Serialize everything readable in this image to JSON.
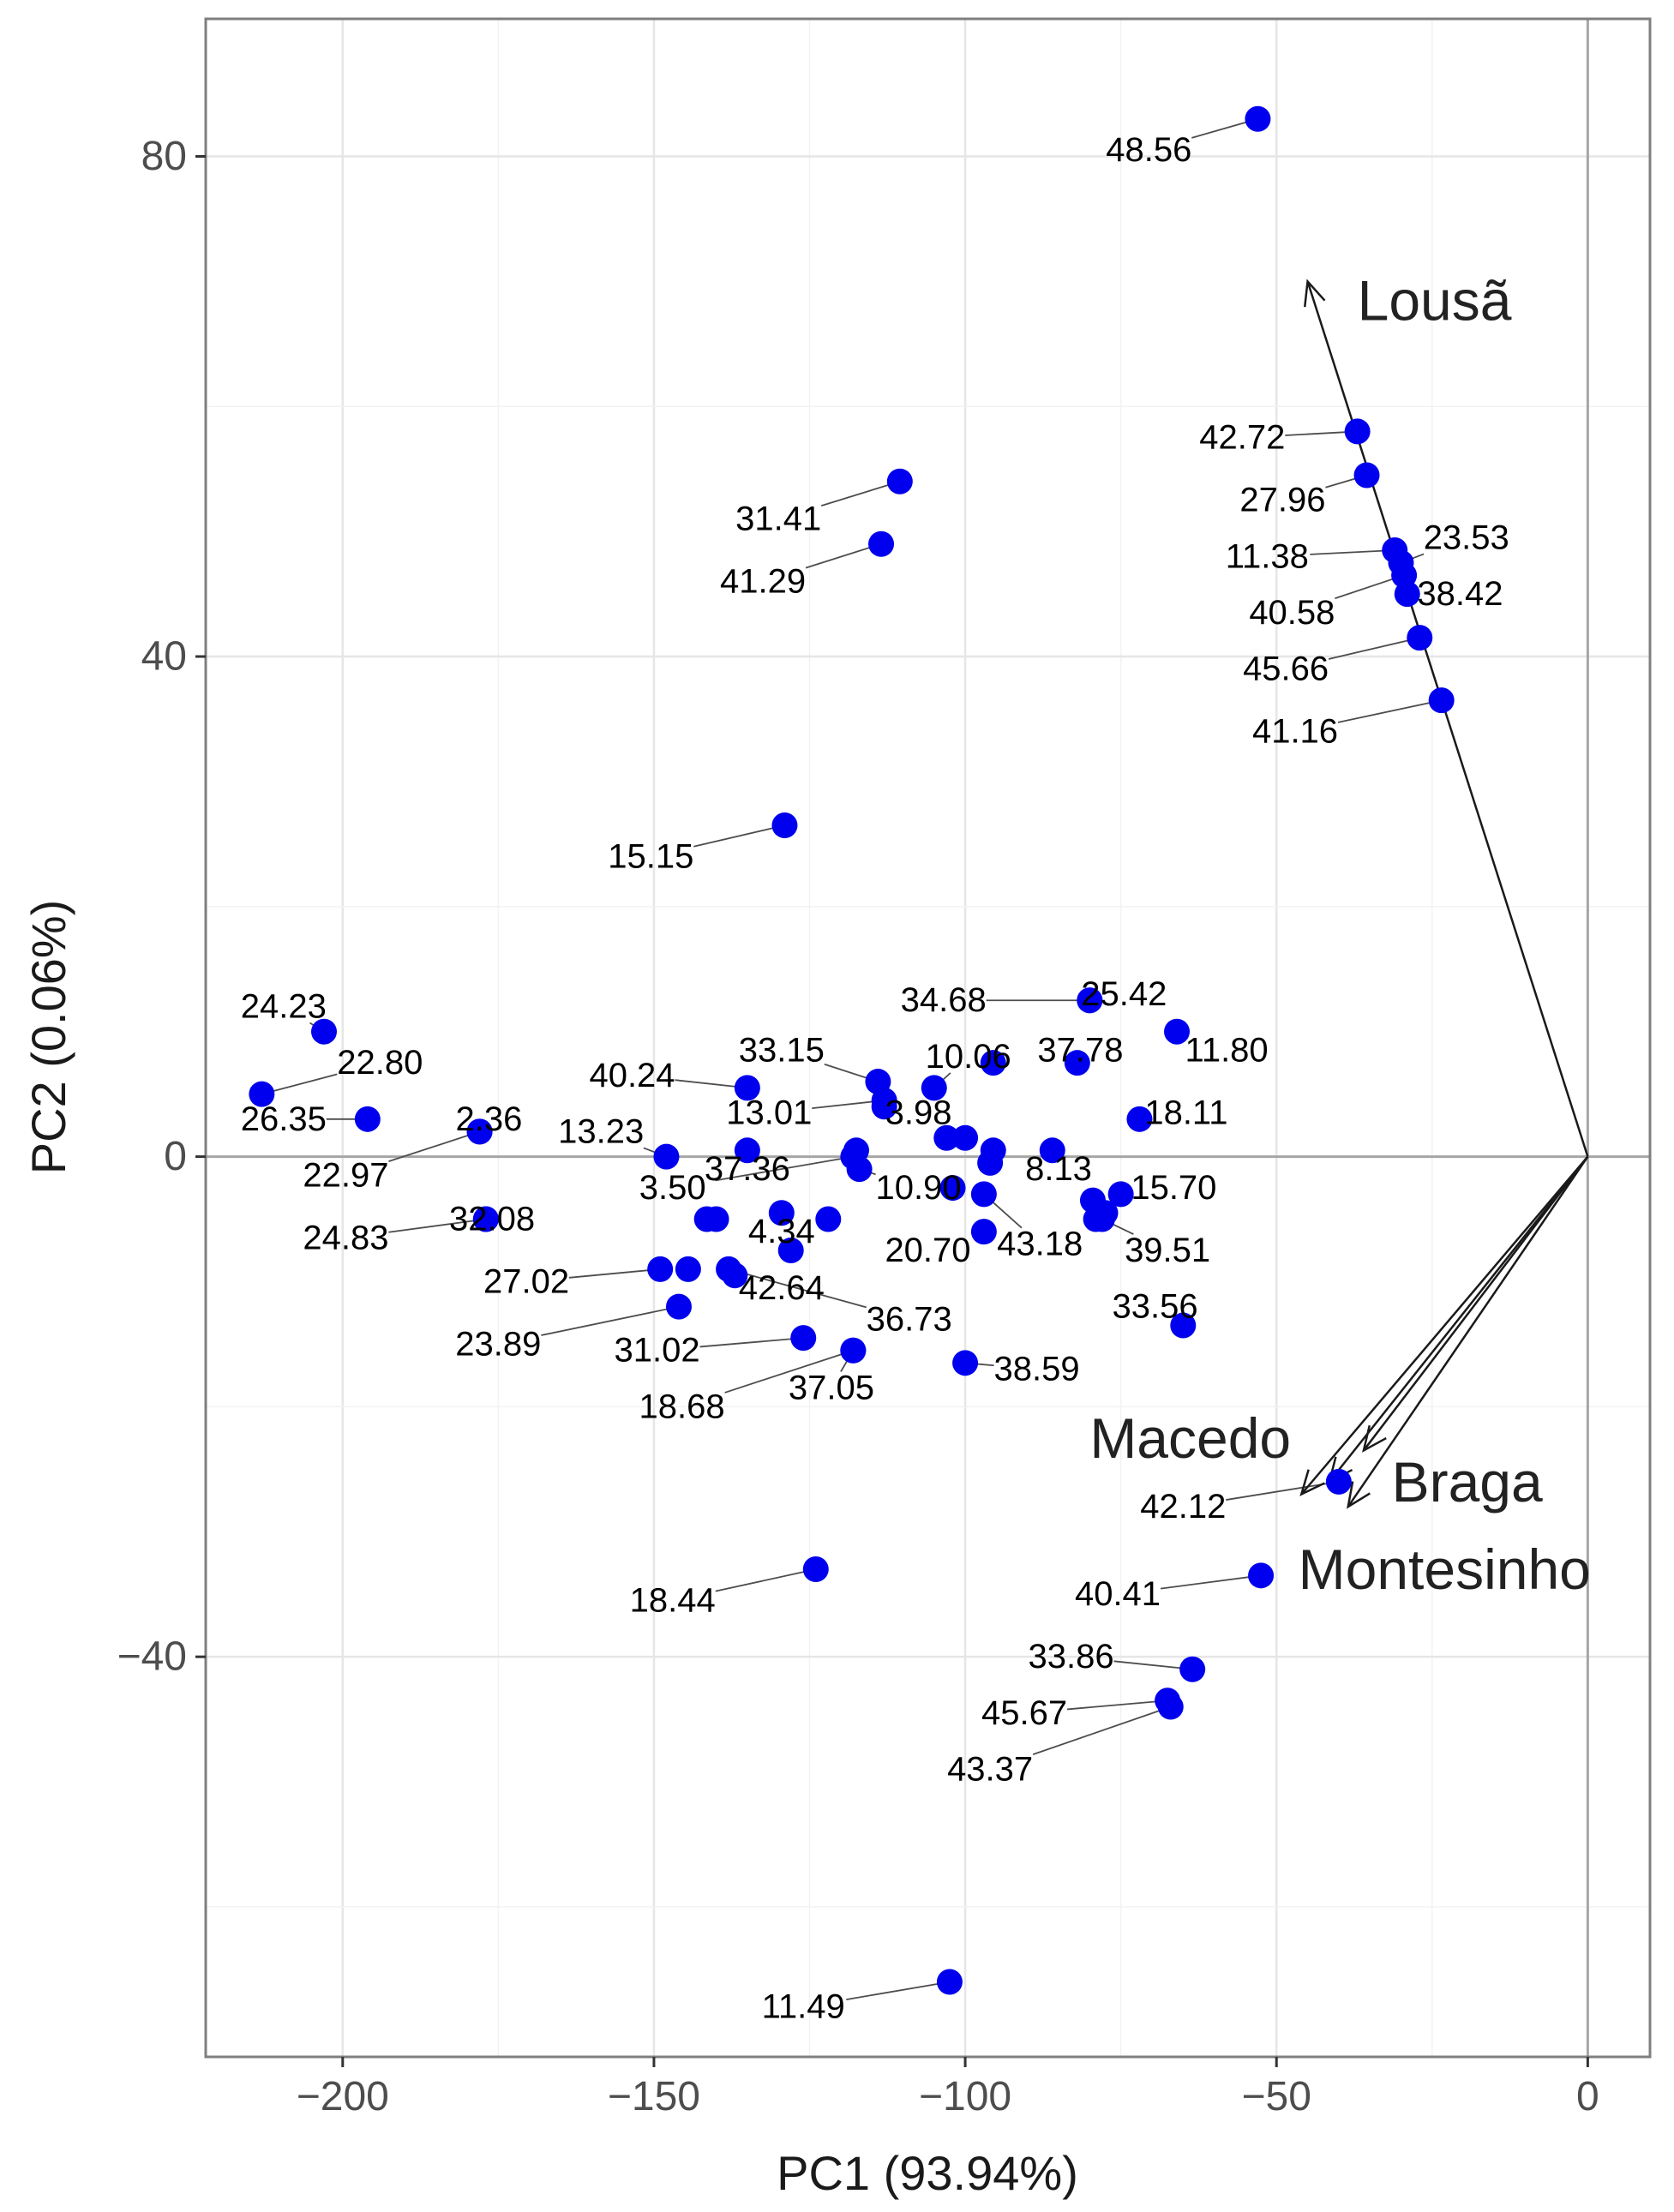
{
  "chart_data": {
    "type": "scatter",
    "subtype": "pca-biplot",
    "xlabel": "PC1 (93.94%)",
    "ylabel": "PC2 (0.06%)",
    "xlim": [
      -222,
      10
    ],
    "ylim": [
      -72,
      91
    ],
    "xticks": [
      -200,
      -150,
      -100,
      -50,
      0
    ],
    "xtick_labels": [
      "−200",
      "−150",
      "−100",
      "−50",
      "0"
    ],
    "yticks": [
      -40,
      0,
      40,
      80
    ],
    "ytick_labels": [
      "−40",
      "0",
      "40",
      "80"
    ],
    "grid": true,
    "point_color": "#0000ee",
    "points": [
      {
        "label": "48.56",
        "x": -53.0,
        "y": 83.0,
        "lx": -70.5,
        "ly": 80.5
      },
      {
        "label": "42.72",
        "x": -37.0,
        "y": 58.0,
        "lx": -55.5,
        "ly": 57.5
      },
      {
        "label": "27.96",
        "x": -35.5,
        "y": 54.5,
        "lx": -49.0,
        "ly": 52.5
      },
      {
        "label": "11.38",
        "x": -31.0,
        "y": 48.5,
        "lx": -51.5,
        "ly": 48.0
      },
      {
        "label": "23.53",
        "x": -30.0,
        "y": 47.5,
        "lx": -19.5,
        "ly": 49.5
      },
      {
        "label": "40.58",
        "x": -29.5,
        "y": 46.5,
        "lx": -47.5,
        "ly": 43.5
      },
      {
        "label": "38.42",
        "x": -29.0,
        "y": 45.0,
        "lx": -20.5,
        "ly": 45.0
      },
      {
        "label": "45.66",
        "x": -27.0,
        "y": 41.5,
        "lx": -48.5,
        "ly": 39.0
      },
      {
        "label": "41.16",
        "x": -23.5,
        "y": 36.5,
        "lx": -47.0,
        "ly": 34.0
      },
      {
        "label": "31.41",
        "x": -110.5,
        "y": 54.0,
        "lx": -130.0,
        "ly": 51.0
      },
      {
        "label": "41.29",
        "x": -113.5,
        "y": 49.0,
        "lx": -132.5,
        "ly": 46.0
      },
      {
        "label": "15.15",
        "x": -129.0,
        "y": 26.5,
        "lx": -150.5,
        "ly": 24.0
      },
      {
        "label": "24.23",
        "x": -203.0,
        "y": 10.0,
        "lx": -209.5,
        "ly": 12.0
      },
      {
        "label": "22.80",
        "x": -213.0,
        "y": 5.0,
        "lx": -194.0,
        "ly": 7.5
      },
      {
        "label": "26.35",
        "x": -196.0,
        "y": 3.0,
        "lx": -209.5,
        "ly": 3.0
      },
      {
        "label": "22.97",
        "x": -178.0,
        "y": 2.0,
        "lx": -199.5,
        "ly": -1.5
      },
      {
        "label": "2.36",
        "x": -178.0,
        "y": 2.0,
        "lx": -176.5,
        "ly": 3.0
      },
      {
        "label": "13.23",
        "x": -148.0,
        "y": 0.0,
        "lx": -158.5,
        "ly": 2.0
      },
      {
        "label": "40.24",
        "x": -135.0,
        "y": 5.5,
        "lx": -153.5,
        "ly": 6.5
      },
      {
        "label": "33.15",
        "x": -114.0,
        "y": 6.0,
        "lx": -129.5,
        "ly": 8.5
      },
      {
        "label": "10.06",
        "x": -105.0,
        "y": 5.5,
        "lx": -99.5,
        "ly": 8.0
      },
      {
        "label": "37.78",
        "x": -82.0,
        "y": 7.5,
        "lx": -81.5,
        "ly": 8.5
      },
      {
        "label": "25.42",
        "x": -80.0,
        "y": 12.5,
        "lx": -74.5,
        "ly": 13.0
      },
      {
        "label": "34.68",
        "x": -80.0,
        "y": 12.5,
        "lx": -103.5,
        "ly": 12.5
      },
      {
        "label": "11.80",
        "x": -66.0,
        "y": 10.0,
        "lx": -58.0,
        "ly": 8.5
      },
      {
        "label": "13.01",
        "x": -113.0,
        "y": 4.5,
        "lx": -131.5,
        "ly": 3.5
      },
      {
        "label": "3.98",
        "x": -113.0,
        "y": 4.0,
        "lx": -107.5,
        "ly": 3.5
      },
      {
        "label": "18.11",
        "x": -72.0,
        "y": 3.0,
        "lx": -64.5,
        "ly": 3.5
      },
      {
        "label": "37.36",
        "x": -135.0,
        "y": 0.5,
        "lx": -135.0,
        "ly": -1.0
      },
      {
        "label": "3.50",
        "x": -118.0,
        "y": 0.0,
        "lx": -147.0,
        "ly": -2.5
      },
      {
        "label": "10.90",
        "x": -117.0,
        "y": -1.0,
        "lx": -107.5,
        "ly": -2.5
      },
      {
        "label": "8.13",
        "x": -86.0,
        "y": 0.5,
        "lx": -85.0,
        "ly": -1.0
      },
      {
        "label": "15.70",
        "x": -75.0,
        "y": -3.0,
        "lx": -66.5,
        "ly": -2.5
      },
      {
        "label": "32.08",
        "x": -177.0,
        "y": -5.0,
        "lx": -176.0,
        "ly": -5.0
      },
      {
        "label": "24.83",
        "x": -177.0,
        "y": -5.0,
        "lx": -199.5,
        "ly": -6.5
      },
      {
        "label": "4.34",
        "x": -128.0,
        "y": -7.5,
        "lx": -129.5,
        "ly": -6.0
      },
      {
        "label": "20.70",
        "x": -97.0,
        "y": -6.0,
        "lx": -106.0,
        "ly": -7.5
      },
      {
        "label": "43.18",
        "x": -97.0,
        "y": -3.0,
        "lx": -88.0,
        "ly": -7.0
      },
      {
        "label": "39.51",
        "x": -78.0,
        "y": -5.0,
        "lx": -67.5,
        "ly": -7.5
      },
      {
        "label": "27.02",
        "x": -149.0,
        "y": -9.0,
        "lx": -170.5,
        "ly": -10.0
      },
      {
        "label": "42.64",
        "x": -137.0,
        "y": -9.5,
        "lx": -129.5,
        "ly": -10.5
      },
      {
        "label": "23.89",
        "x": -146.0,
        "y": -12.0,
        "lx": -175.0,
        "ly": -15.0
      },
      {
        "label": "31.02",
        "x": -126.0,
        "y": -14.5,
        "lx": -149.5,
        "ly": -15.5
      },
      {
        "label": "36.73",
        "x": -138.0,
        "y": -9.0,
        "lx": -109.0,
        "ly": -13.0
      },
      {
        "label": "33.56",
        "x": -65.0,
        "y": -13.5,
        "lx": -69.5,
        "ly": -12.0
      },
      {
        "label": "38.59",
        "x": -100.0,
        "y": -16.5,
        "lx": -88.5,
        "ly": -17.0
      },
      {
        "label": "37.05",
        "x": -118.0,
        "y": -15.5,
        "lx": -121.5,
        "ly": -18.5
      },
      {
        "label": "18.68",
        "x": -118.0,
        "y": -15.5,
        "lx": -145.5,
        "ly": -20.0
      },
      {
        "label": "42.12",
        "x": -40.0,
        "y": -26.0,
        "lx": -65.0,
        "ly": -28.0
      },
      {
        "label": "40.41",
        "x": -52.5,
        "y": -33.5,
        "lx": -75.5,
        "ly": -35.0
      },
      {
        "label": "18.44",
        "x": -124.0,
        "y": -33.0,
        "lx": -147.0,
        "ly": -35.5
      },
      {
        "label": "33.86",
        "x": -63.5,
        "y": -41.0,
        "lx": -83.0,
        "ly": -40.0
      },
      {
        "label": "45.67",
        "x": -67.5,
        "y": -43.5,
        "lx": -90.5,
        "ly": -44.5
      },
      {
        "label": "43.37",
        "x": -67.0,
        "y": -44.0,
        "lx": -96.0,
        "ly": -49.0
      },
      {
        "label": "11.49",
        "x": -102.5,
        "y": -66.0,
        "lx": -126.0,
        "ly": -68.0
      }
    ],
    "extra_points": [
      [
        -141.5,
        -5.0
      ],
      [
        -140.0,
        -5.0
      ],
      [
        -122.0,
        -5.0
      ],
      [
        -129.5,
        -4.5
      ],
      [
        -144.5,
        -9.0
      ],
      [
        -117.5,
        0.5
      ],
      [
        -102.0,
        -2.5
      ],
      [
        -103.0,
        1.5
      ],
      [
        -100.0,
        1.5
      ],
      [
        -96.0,
        -0.5
      ],
      [
        -95.5,
        0.5
      ],
      [
        -95.5,
        7.5
      ],
      [
        -79.5,
        -3.5
      ],
      [
        -77.5,
        -4.5
      ],
      [
        -79.0,
        -5.0
      ]
    ],
    "loadings": [
      {
        "name": "Lousã",
        "x": -45.0,
        "y": 70.0,
        "lx": -37.0,
        "ly": 68.5
      },
      {
        "name": "Macedo",
        "x": -46.0,
        "y": -27.0,
        "lx": -80.0,
        "ly": -22.5
      },
      {
        "name": "Braga",
        "x": -36.0,
        "y": -23.5,
        "lx": -31.5,
        "ly": -26.0
      },
      {
        "name": "Montesinho",
        "x": -38.5,
        "y": -28.0,
        "lx": -46.5,
        "ly": -33.0
      }
    ],
    "extra_loadings": [
      [
        -41.5,
        -26.0
      ]
    ]
  }
}
